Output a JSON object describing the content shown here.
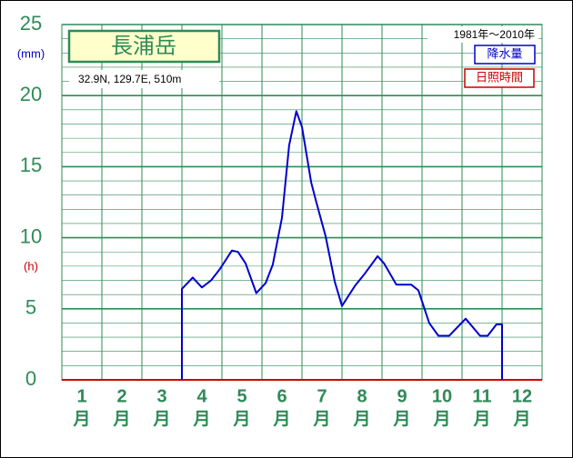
{
  "chart_data": {
    "type": "line",
    "title": "長浦岳",
    "subtitle": "32.9N,  129.7E,  510m",
    "period": "1981年〜2010年",
    "y_unit_left": "(mm)",
    "y_unit_right": "(h)",
    "legend_labels": [
      {
        "name": "降水量",
        "color": "#0000cc"
      },
      {
        "name": "日照時間",
        "color": "#cc0000"
      }
    ],
    "month_suffix": "月",
    "xlim": [
      0.5,
      12.5
    ],
    "xticks": [
      1,
      2,
      3,
      4,
      5,
      6,
      7,
      8,
      9,
      10,
      11,
      12
    ],
    "ylim": [
      0,
      25
    ],
    "yticks": [
      0,
      5,
      10,
      15,
      20,
      25
    ],
    "minor_step": 1,
    "grid": true,
    "series": [
      {
        "name": "降水量",
        "color": "#0000cc",
        "x": [
          3.5,
          3.5,
          3.77,
          4.0,
          4.23,
          4.45,
          4.75,
          4.9,
          5.09,
          5.36,
          5.59,
          5.77,
          6.0,
          6.18,
          6.36,
          6.5,
          6.73,
          6.86,
          7.09,
          7.32,
          7.5,
          7.82,
          8.05,
          8.39,
          8.55,
          8.86,
          9.23,
          9.41,
          9.68,
          9.91,
          10.18,
          10.59,
          10.95,
          11.14,
          11.36,
          11.5,
          11.5
        ],
        "values": [
          0,
          6.4,
          7.2,
          6.5,
          7.0,
          7.8,
          9.1,
          9.0,
          8.2,
          6.1,
          6.8,
          8.1,
          11.4,
          16.5,
          18.9,
          17.8,
          13.9,
          12.5,
          10.1,
          6.9,
          5.2,
          6.6,
          7.4,
          8.7,
          8.2,
          6.7,
          6.7,
          6.3,
          4.0,
          3.1,
          3.1,
          4.3,
          3.1,
          3.1,
          3.9,
          3.9,
          0
        ]
      }
    ]
  }
}
